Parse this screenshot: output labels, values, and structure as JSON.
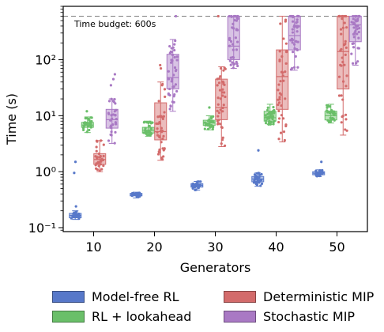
{
  "chart_data": {
    "type": "box",
    "xlabel": "Generators",
    "ylabel": "Time (s)",
    "yscale": "log",
    "ylim": [
      0.085,
      900
    ],
    "categories": [
      "10",
      "20",
      "30",
      "40",
      "50"
    ],
    "ytick_labels": [
      "10⁻¹",
      "10⁰",
      "10¹",
      "10²"
    ],
    "ytick_values": [
      0.1,
      1,
      10,
      100
    ],
    "reference_line": {
      "value": 600,
      "label": "Time budget: 600s"
    },
    "series": [
      {
        "name": "Model-free RL",
        "color": "#5778C9",
        "boxes": [
          {
            "q1": 0.15,
            "median": 0.165,
            "q3": 0.18,
            "wlo": 0.14,
            "whi": 0.2,
            "n": 20,
            "outliers": [
              0.95,
              1.5,
              0.24
            ]
          },
          {
            "q1": 0.37,
            "median": 0.39,
            "q3": 0.41,
            "wlo": 0.34,
            "whi": 0.43,
            "n": 20,
            "outliers": []
          },
          {
            "q1": 0.53,
            "median": 0.57,
            "q3": 0.61,
            "wlo": 0.47,
            "whi": 0.67,
            "n": 25,
            "outliers": []
          },
          {
            "q1": 0.66,
            "median": 0.74,
            "q3": 0.82,
            "wlo": 0.55,
            "whi": 0.95,
            "n": 30,
            "outliers": [
              2.4
            ]
          },
          {
            "q1": 0.88,
            "median": 0.94,
            "q3": 1.0,
            "wlo": 0.82,
            "whi": 1.08,
            "n": 20,
            "outliers": [
              1.5
            ]
          }
        ]
      },
      {
        "name": "RL + lookahead",
        "color": "#6ABF69",
        "boxes": [
          {
            "q1": 6.2,
            "median": 6.8,
            "q3": 7.6,
            "wlo": 5.0,
            "whi": 9.5,
            "n": 30,
            "outliers": [
              12
            ]
          },
          {
            "q1": 4.9,
            "median": 5.5,
            "q3": 6.2,
            "wlo": 4.3,
            "whi": 8.0,
            "n": 30,
            "outliers": []
          },
          {
            "q1": 6.7,
            "median": 7.4,
            "q3": 8.3,
            "wlo": 5.6,
            "whi": 10,
            "n": 30,
            "outliers": [
              14
            ]
          },
          {
            "q1": 8.0,
            "median": 9.2,
            "q3": 12,
            "wlo": 7.0,
            "whi": 16,
            "n": 35,
            "outliers": []
          },
          {
            "q1": 8.4,
            "median": 10,
            "q3": 12,
            "wlo": 7.4,
            "whi": 16,
            "n": 30,
            "outliers": []
          }
        ]
      },
      {
        "name": "Deterministic MIP",
        "color": "#D36B6B",
        "boxes": [
          {
            "q1": 1.35,
            "median": 1.65,
            "q3": 2.1,
            "wlo": 1.0,
            "whi": 3.6,
            "n": 30,
            "outliers": []
          },
          {
            "q1": 3.7,
            "median": 5.2,
            "q3": 17,
            "wlo": 1.6,
            "whi": 40,
            "n": 40,
            "outliers": [
              70,
              80
            ]
          },
          {
            "q1": 8.5,
            "median": 14,
            "q3": 45,
            "wlo": 2.8,
            "whi": 75,
            "n": 40,
            "outliers": [
              600
            ]
          },
          {
            "q1": 13,
            "median": 50,
            "q3": 150,
            "wlo": 3.4,
            "whi": 600,
            "n": 40,
            "outliers": []
          },
          {
            "q1": 30,
            "median": 140,
            "q3": 600,
            "wlo": 4.5,
            "whi": 600,
            "n": 40,
            "outliers": []
          }
        ]
      },
      {
        "name": "Stochastic MIP",
        "color": "#A979C4",
        "boxes": [
          {
            "q1": 6.0,
            "median": 8.5,
            "q3": 13,
            "wlo": 3.2,
            "whi": 20,
            "n": 30,
            "outliers": [
              35,
              45,
              55
            ]
          },
          {
            "q1": 30,
            "median": 48,
            "q3": 125,
            "wlo": 12,
            "whi": 230,
            "n": 40,
            "outliers": [
              600
            ]
          },
          {
            "q1": 100,
            "median": 175,
            "q3": 600,
            "wlo": 70,
            "whi": 600,
            "n": 40,
            "outliers": []
          },
          {
            "q1": 150,
            "median": 270,
            "q3": 600,
            "wlo": 65,
            "whi": 600,
            "n": 40,
            "outliers": []
          },
          {
            "q1": 210,
            "median": 420,
            "q3": 600,
            "wlo": 80,
            "whi": 600,
            "n": 40,
            "outliers": []
          }
        ]
      }
    ],
    "legend_position": "bottom"
  },
  "legend": {
    "items": [
      {
        "label": "Model-free RL",
        "color": "#5778C9"
      },
      {
        "label": "Deterministic MIP",
        "color": "#D36B6B"
      },
      {
        "label": "RL + lookahead",
        "color": "#6ABF69"
      },
      {
        "label": "Stochastic MIP",
        "color": "#A979C4"
      }
    ]
  }
}
